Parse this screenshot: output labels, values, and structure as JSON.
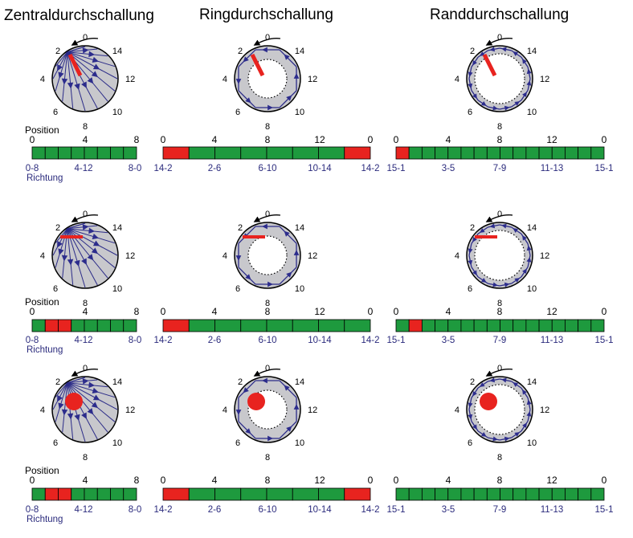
{
  "titles": [
    "Zentraldurchschallung",
    "Ringdurchschallung",
    "Randdurchschallung"
  ],
  "dial_labels": {
    "top": "0",
    "tl": "2",
    "ml": "4",
    "bl": "6",
    "bottom": "8",
    "br": "10",
    "mr": "12",
    "tr": "14"
  },
  "position_label": "Position",
  "direction_label": "Richtung",
  "colors": {
    "bar_green": "#1e9a3e",
    "defect_red": "#e8231f",
    "circle_fill": "#c8c8cc",
    "arrow_blue": "#2c2c8c",
    "spoke_blue": "#2b2b88",
    "dir_text": "#2b2b7d"
  },
  "columns": [
    {
      "key": "zentral",
      "bar_segments": 8,
      "position_ticks": [
        "0",
        "4",
        "8"
      ],
      "direction_ticks": [
        "0-8",
        "4-12",
        "8-0"
      ],
      "rows_red_segments": [
        [],
        [
          1,
          2
        ],
        [
          1,
          2
        ]
      ]
    },
    {
      "key": "ring",
      "bar_segments": 8,
      "position_ticks": [
        "0",
        "4",
        "8",
        "12",
        "0"
      ],
      "direction_ticks": [
        "14-2",
        "2-6",
        "6-10",
        "10-14",
        "14-2"
      ],
      "rows_red_segments": [
        [
          0,
          7
        ],
        [
          0
        ],
        [
          0,
          7
        ]
      ]
    },
    {
      "key": "rand",
      "bar_segments": 16,
      "position_ticks": [
        "0",
        "4",
        "8",
        "12",
        "0"
      ],
      "direction_ticks": [
        "15-1",
        "3-5",
        "7-9",
        "11-13",
        "15-1"
      ],
      "rows_red_segments": [
        [
          0
        ],
        [
          1
        ],
        []
      ]
    }
  ],
  "defect_types": [
    "radial-crack",
    "horizontal-crack",
    "round-void"
  ],
  "icons": [
    "rotation-arrow-icon",
    "direction-arrowhead-icon"
  ]
}
